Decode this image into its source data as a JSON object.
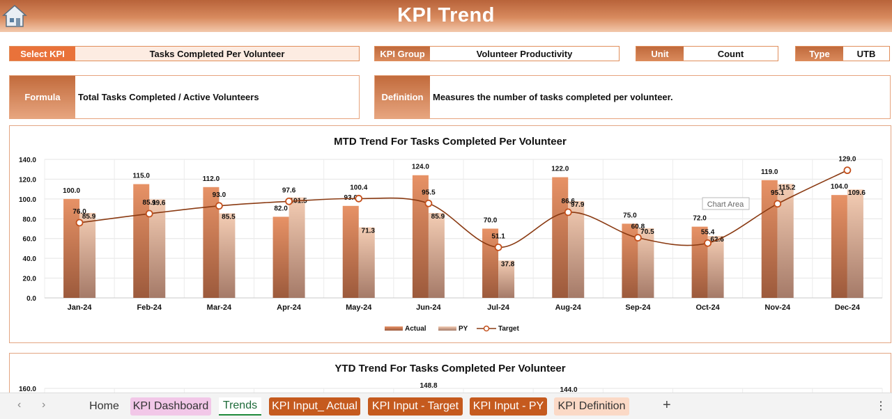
{
  "header": {
    "title": "KPI Trend"
  },
  "selectors": {
    "select_kpi": {
      "label": "Select KPI",
      "value": "Tasks Completed Per Volunteer"
    },
    "kpi_group": {
      "label": "KPI Group",
      "value": "Volunteer Productivity"
    },
    "unit": {
      "label": "Unit",
      "value": "Count"
    },
    "type": {
      "label": "Type",
      "value": "UTB"
    }
  },
  "formula": {
    "label": "Formula",
    "value": "Total Tasks Completed / Active Volunteers"
  },
  "definition": {
    "label": "Definition",
    "value": "Measures the number of tasks completed per volunteer."
  },
  "colors": {
    "accent": "#c86b3a",
    "line": "#8a3a12",
    "actual_bar": "#d9855a",
    "py_bar": "#ebbfa4"
  },
  "chart_data": [
    {
      "type": "bar",
      "title": "MTD Trend For Tasks Completed Per Volunteer",
      "categories": [
        "Jan-24",
        "Feb-24",
        "Mar-24",
        "Apr-24",
        "May-24",
        "Jun-24",
        "Jul-24",
        "Aug-24",
        "Sep-24",
        "Oct-24",
        "Nov-24",
        "Dec-24"
      ],
      "series": [
        {
          "name": "Actual",
          "values": [
            100.0,
            115.0,
            112.0,
            82.0,
            93.0,
            124.0,
            70.0,
            122.0,
            75.0,
            72.0,
            119.0,
            104.0
          ]
        },
        {
          "name": "PY",
          "values": [
            85.9,
            99.6,
            85.5,
            101.5,
            71.3,
            85.9,
            37.8,
            97.9,
            70.5,
            62.6,
            115.2,
            109.6
          ]
        },
        {
          "name": "Target",
          "type": "line",
          "values": [
            76.0,
            85.1,
            93.0,
            97.6,
            100.4,
            95.5,
            51.1,
            86.6,
            60.8,
            55.4,
            95.1,
            129.0
          ]
        }
      ],
      "yticks": [
        "0.0",
        "20.0",
        "40.0",
        "60.0",
        "80.0",
        "100.0",
        "120.0",
        "140.0"
      ],
      "ylim": [
        0,
        140
      ],
      "grid": true,
      "legend": "bottom",
      "tooltip": "Chart Area"
    },
    {
      "type": "bar",
      "title": "YTD Trend For Tasks Completed Per Volunteer",
      "yticks": [
        "160.0"
      ],
      "visible_labels": [
        "148.8",
        "144.0"
      ]
    }
  ],
  "sheet_tabs": {
    "tabs": [
      {
        "label": "Home"
      },
      {
        "label": "KPI Dashboard"
      },
      {
        "label": "Trends"
      },
      {
        "label": "KPI Input_ Actual"
      },
      {
        "label": "KPI Input - Target"
      },
      {
        "label": "KPI Input - PY"
      },
      {
        "label": "KPI Definition"
      }
    ],
    "add_label": "+",
    "more_label": "⋮",
    "prev_label": "‹",
    "next_label": "›"
  }
}
